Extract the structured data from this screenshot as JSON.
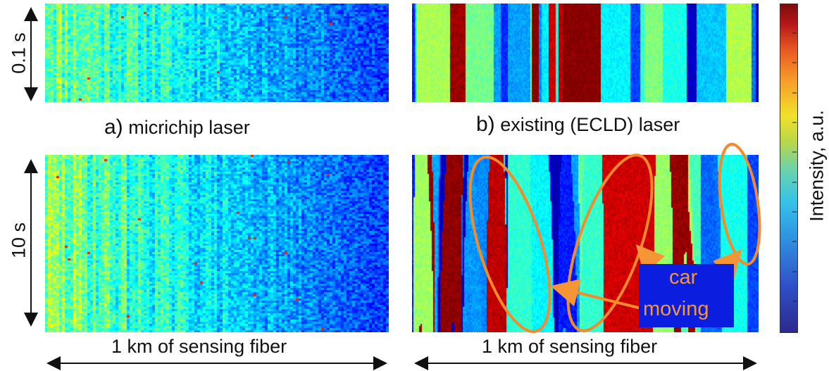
{
  "chart_data": [
    {
      "type": "heatmap",
      "panel": "a",
      "caption_letter": "a)",
      "caption_text": "micrichip laser",
      "ylabel": "0.1 s",
      "xlabel": "",
      "pattern": "speckle, bright at left fading to dark at right"
    },
    {
      "type": "heatmap",
      "panel": "b",
      "caption_letter": "b)",
      "caption_text": "existing (ECLD) laser",
      "ylabel": "",
      "xlabel": "",
      "pattern": "vertical stripes with bright red columns"
    },
    {
      "type": "heatmap",
      "panel": "c",
      "ylabel": "10 s",
      "xlabel": "1 km of sensing fiber",
      "pattern": "speckle, bright at left fading to dark at right"
    },
    {
      "type": "heatmap",
      "panel": "d",
      "ylabel": "",
      "xlabel": "1 km of sensing fiber",
      "pattern": "vertical stripes with tilted streaks, three circled regions",
      "annotation": {
        "line1": "car",
        "line2": "moving",
        "color": "#f59636",
        "box_color": "#0b1ee0"
      }
    }
  ],
  "colorbar": {
    "label": "Intensity, a.u.",
    "colormap": "jet"
  }
}
